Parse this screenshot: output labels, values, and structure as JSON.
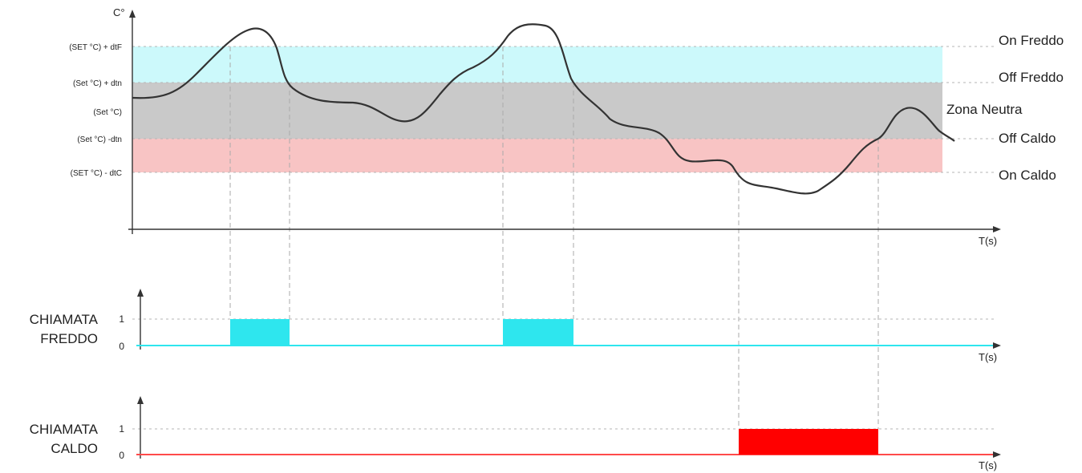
{
  "diagram": {
    "y_axis_label": "C°",
    "x_axis_label": "T(s)",
    "levels": [
      {
        "name": "(SET °C) + dtF",
        "right_label": "On Freddo"
      },
      {
        "name": "(Set °C) + dtn",
        "right_label": "Off Freddo"
      },
      {
        "name": "(Set °C)",
        "right_label": ""
      },
      {
        "name": "(Set °C) -dtn",
        "right_label": "Off Caldo"
      },
      {
        "name": "(SET °C) - dtC",
        "right_label": "On Caldo"
      }
    ],
    "zone_label": "Zona Neutra",
    "colors": {
      "cold_band": "#ccf9fb",
      "neutral_band": "#c9c9c9",
      "hot_band": "#f8c4c4",
      "cold_signal": "#2ee6ee",
      "hot_signal": "#ff0000",
      "curve": "#333333"
    },
    "signals": [
      {
        "label_line1": "CHIAMATA",
        "label_line2": "FREDDO",
        "tick_high": "1",
        "tick_low": "0",
        "x_axis_label": "T(s)"
      },
      {
        "label_line1": "CHIAMATA",
        "label_line2": "CALDO",
        "tick_high": "1",
        "tick_low": "0",
        "x_axis_label": "T(s)"
      }
    ]
  }
}
